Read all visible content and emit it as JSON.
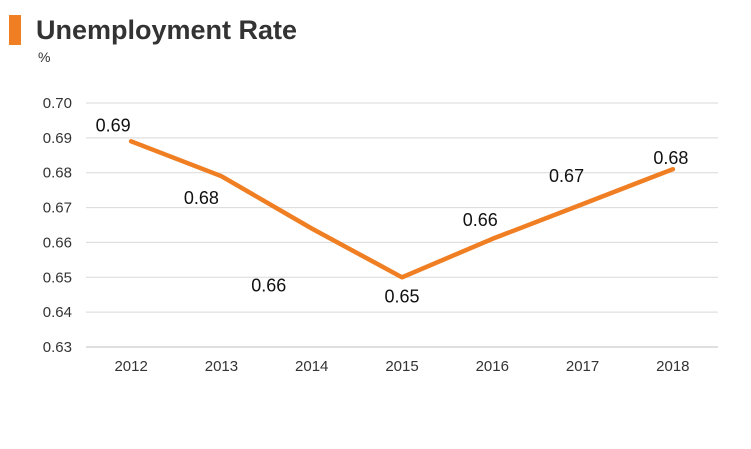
{
  "chart_data": {
    "type": "line",
    "title": "Unemployment Rate",
    "ylabel": "%",
    "xlabel": "",
    "categories": [
      "2012",
      "2013",
      "2014",
      "2015",
      "2016",
      "2017",
      "2018"
    ],
    "series": [
      {
        "values": [
          0.689,
          0.679,
          0.664,
          0.65,
          0.661,
          0.671,
          0.681
        ],
        "labels": [
          "0.69",
          "0.68",
          "0.66",
          "0.65",
          "0.66",
          "0.67",
          "0.68"
        ],
        "color": "#f07e22"
      }
    ],
    "ylim": [
      0.63,
      0.7
    ],
    "yticks": [
      "0.70",
      "0.69",
      "0.68",
      "0.67",
      "0.66",
      "0.65",
      "0.64",
      "0.63"
    ],
    "grid": true,
    "legend": "none"
  },
  "colors": {
    "accent": "#f07e22",
    "text": "#333333",
    "grid": "#d9d9d9"
  }
}
